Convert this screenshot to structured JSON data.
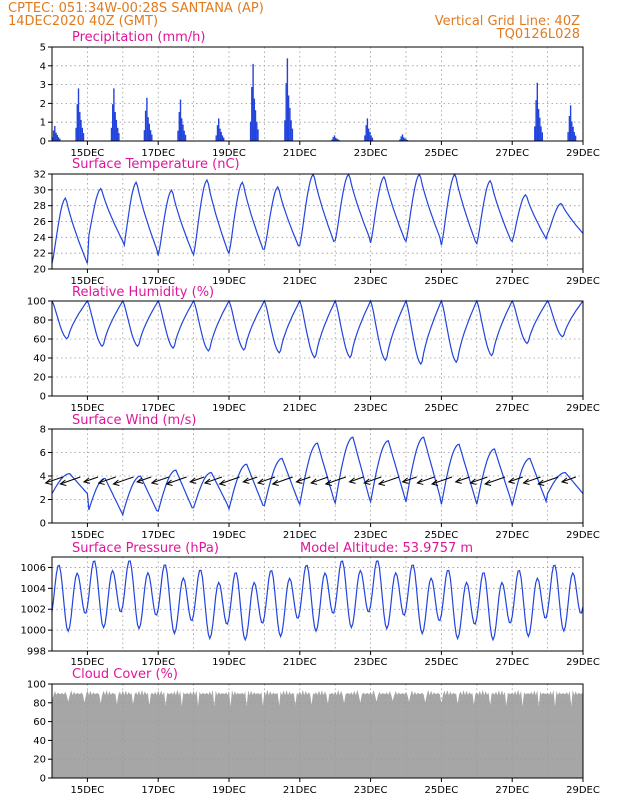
{
  "header": {
    "line1": "CPTEC:   051:34W-00:28S   SANTANA (AP)",
    "line2": "14DEC2020 40Z (GMT)",
    "grid_note": "Vertical Grid Line: 40Z",
    "code": "TQ0126L028"
  },
  "colors": {
    "header": "#e07b1f",
    "panel_title": "#e0169a",
    "series": "#2244dd",
    "cloud": "#a6a6a6",
    "grid": "#999999"
  },
  "x_axis": {
    "start": "14DEC2020",
    "end": "29DEC2020",
    "tick_labels": [
      "15DEC",
      "17DEC",
      "19DEC",
      "21DEC",
      "23DEC",
      "25DEC",
      "27DEC",
      "29DEC"
    ],
    "grid_every_days": 1
  },
  "chart_data": [
    {
      "type": "bar",
      "title": "Precipitation (mm/h)",
      "ylim": [
        0,
        5
      ],
      "yticks": [
        0,
        1,
        2,
        3,
        4,
        5
      ],
      "grid": true,
      "events": [
        {
          "day": 14.05,
          "peak": 0.8
        },
        {
          "day": 14.72,
          "peak": 2.8
        },
        {
          "day": 15.72,
          "peak": 2.8
        },
        {
          "day": 16.65,
          "peak": 2.3
        },
        {
          "day": 17.6,
          "peak": 2.2
        },
        {
          "day": 18.68,
          "peak": 1.2
        },
        {
          "day": 19.65,
          "peak": 4.1
        },
        {
          "day": 20.62,
          "peak": 4.4
        },
        {
          "day": 21.95,
          "peak": 0.3
        },
        {
          "day": 22.88,
          "peak": 1.2
        },
        {
          "day": 23.87,
          "peak": 0.35
        },
        {
          "day": 27.68,
          "peak": 3.1
        },
        {
          "day": 28.62,
          "peak": 1.9
        }
      ]
    },
    {
      "type": "line",
      "title": "Surface Temperature (nC)",
      "ylim": [
        20,
        32
      ],
      "yticks": [
        20,
        22,
        24,
        26,
        28,
        30,
        32
      ],
      "grid": true,
      "base": 23,
      "daily_max": [
        29.0,
        30.2,
        31.0,
        30.0,
        31.3,
        31.0,
        30.4,
        32.0,
        32.0,
        31.7,
        32.0,
        32.0,
        31.2,
        29.4,
        28.3
      ],
      "daily_min": [
        20.7,
        23.5,
        22.0,
        21.7,
        21.8,
        22.0,
        22.5,
        23.0,
        23.6,
        23.3,
        23.5,
        23.0,
        23.2,
        23.5,
        24.5
      ]
    },
    {
      "type": "line",
      "title": "Relative Humidity (%)",
      "ylim": [
        0,
        100
      ],
      "yticks": [
        0,
        20,
        40,
        60,
        80,
        100
      ],
      "grid": true,
      "daily_min": [
        60,
        52,
        52,
        50,
        47,
        48,
        45,
        40,
        40,
        37,
        33,
        35,
        42,
        55,
        62
      ]
    },
    {
      "type": "line",
      "title": "Surface Wind (m/s)",
      "ylim": [
        0,
        8
      ],
      "yticks": [
        0,
        2,
        4,
        6,
        8
      ],
      "grid": true,
      "daily_max": [
        4.2,
        3.8,
        4.0,
        4.5,
        4.3,
        5.0,
        5.5,
        6.8,
        7.3,
        7.0,
        7.3,
        6.7,
        6.3,
        5.5,
        4.3
      ],
      "daily_min": [
        2.5,
        0.7,
        0.8,
        1.0,
        1.3,
        1.2,
        1.5,
        1.6,
        1.7,
        1.8,
        1.8,
        1.6,
        1.6,
        1.5,
        2.5
      ],
      "wind_direction_from": "NE"
    },
    {
      "type": "line",
      "title": "Surface Pressure (hPa)",
      "annotation": "Model Altitude: 53.9757 m",
      "ylim": [
        998,
        1007
      ],
      "yticks": [
        998,
        1000,
        1002,
        1004,
        1006
      ],
      "grid": true,
      "mean": 1003.0,
      "semidiurnal_amplitude": 2.6
    },
    {
      "type": "area",
      "title": "Cloud Cover (%)",
      "ylim": [
        0,
        100
      ],
      "yticks": [
        0,
        20,
        40,
        60,
        80,
        100
      ],
      "grid": true,
      "typical": 94
    }
  ]
}
